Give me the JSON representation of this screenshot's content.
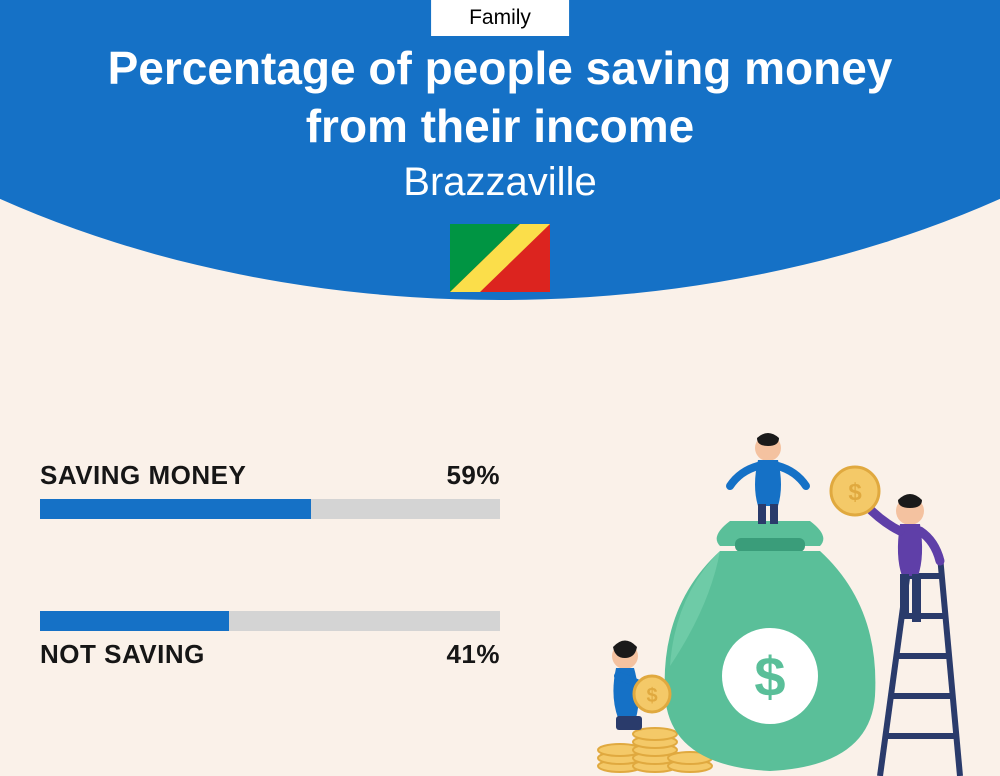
{
  "header": {
    "tag": "Family",
    "title_line1": "Percentage of people saving money",
    "title_line2": "from their income",
    "subtitle": "Brazzaville"
  },
  "colors": {
    "arc": "#1571c6",
    "background": "#faf1e9",
    "bar_fill": "#1571c6",
    "bar_track": "#d4d4d4",
    "text_dark": "#161616",
    "text_light": "#ffffff"
  },
  "flag": {
    "width": 100,
    "height": 68,
    "green": "#009543",
    "yellow": "#fbde4a",
    "red": "#dc241f"
  },
  "bars": [
    {
      "label": "SAVING MONEY",
      "value": 59,
      "display": "59%",
      "label_position": "above"
    },
    {
      "label": "NOT SAVING",
      "value": 41,
      "display": "41%",
      "label_position": "below"
    }
  ],
  "typography": {
    "title_fontsize": 46,
    "title_weight": 800,
    "subtitle_fontsize": 40,
    "tag_fontsize": 21,
    "bar_label_fontsize": 26,
    "bar_label_weight": 800
  },
  "illustration": {
    "bag_color": "#5abf99",
    "bag_shadow": "#3a9d7a",
    "coin_fill": "#f4c968",
    "coin_stroke": "#e0a93f",
    "ladder_color": "#2a3b6b",
    "person1_top": "#1571c6",
    "person1_bottom": "#2a3b6b",
    "person2_top": "#5f3fa8",
    "person2_bottom": "#2a3b6b",
    "person3_top": "#1571c6",
    "person3_bottom": "#2a3b6b",
    "skin": "#f4c2a0",
    "hair": "#1a1a1a"
  }
}
